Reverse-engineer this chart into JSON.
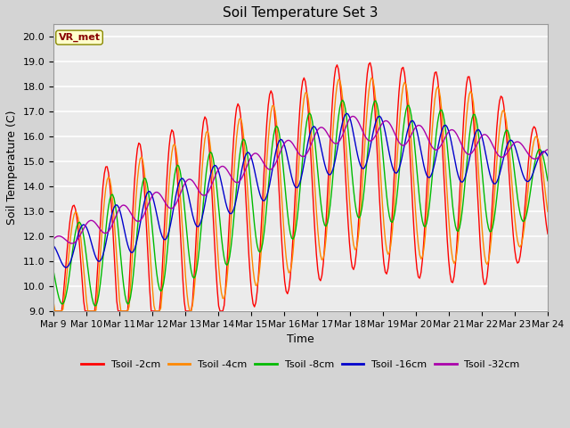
{
  "title": "Soil Temperature Set 3",
  "xlabel": "Time",
  "ylabel": "Soil Temperature (C)",
  "ylim": [
    9.0,
    20.5
  ],
  "yticks": [
    9.0,
    10.0,
    11.0,
    12.0,
    13.0,
    14.0,
    15.0,
    16.0,
    17.0,
    18.0,
    19.0,
    20.0
  ],
  "fig_bg_color": "#d4d4d4",
  "plot_bg_color": "#ebebeb",
  "legend_label": "VR_met",
  "series_colors": {
    "Tsoil -2cm": "#ff0000",
    "Tsoil -4cm": "#ff8800",
    "Tsoil -8cm": "#00bb00",
    "Tsoil -16cm": "#0000cc",
    "Tsoil -32cm": "#aa00aa"
  },
  "series_order": [
    "Tsoil -2cm",
    "Tsoil -4cm",
    "Tsoil -8cm",
    "Tsoil -16cm",
    "Tsoil -32cm"
  ],
  "xtick_labels": [
    "Mar 9",
    "Mar 10",
    "Mar 11",
    "Mar 12",
    "Mar 13",
    "Mar 14",
    "Mar 15",
    "Mar 16",
    "Mar 17",
    "Mar 18",
    "Mar 19",
    "Mar 20",
    "Mar 21",
    "Mar 22",
    "Mar 23",
    "Mar 24"
  ],
  "n_points": 360,
  "days": 15
}
